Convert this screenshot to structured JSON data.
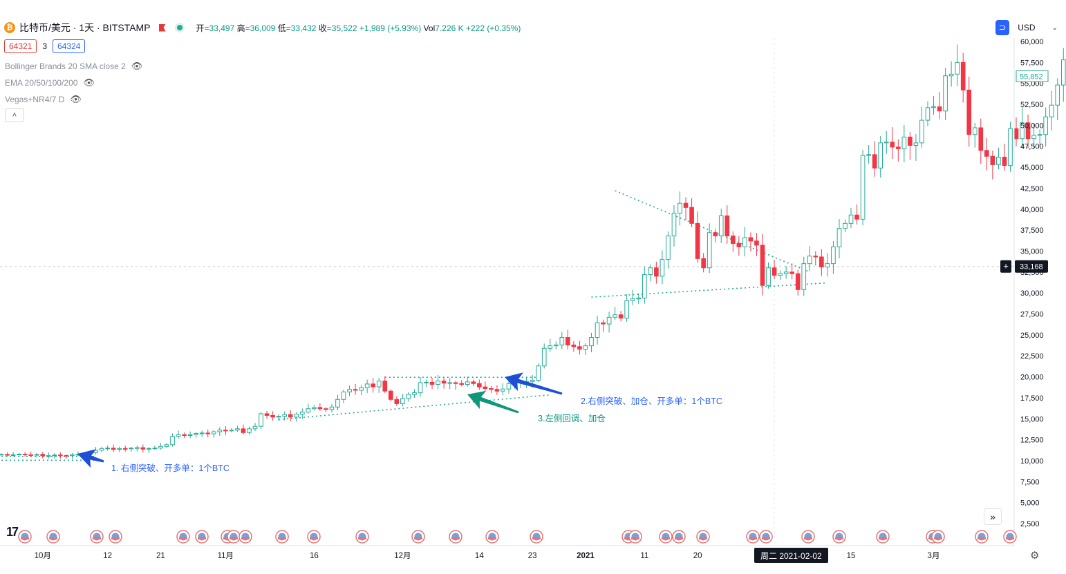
{
  "header": {
    "coin_icon": "bitcoin-icon",
    "coin_glyph": "₿",
    "symbol": "比特币/美元 · 1天 · BITSTAMP",
    "open_label": "开",
    "open": "=33,497",
    "high_label": "高",
    "high": "=36,009",
    "low_label": "低",
    "low": "=33,432",
    "close_label": "收",
    "close": "=35,522",
    "change": "+1,989 (+5.93%)",
    "vol_label": "Vol",
    "vol": "7.226 K",
    "vol_change": "+222 (+0.35%)"
  },
  "price_boxes": {
    "bid": "64321",
    "spread": "3",
    "ask": "64324"
  },
  "indicators": [
    "Bollinger Brands 20 SMA close 2",
    "EMA 20/50/100/200",
    "Vegas+NR4/7 D"
  ],
  "collapse_glyph": "˄",
  "currency": {
    "label": "USD",
    "caret": "⌄",
    "icon": "⊃"
  },
  "tv_logo": "17",
  "more_glyph": "»",
  "settings_glyph": "⚙",
  "cursor_date": "周二 2021-02-02",
  "price_labels": {
    "last": "55,852",
    "crosshair": "33,168",
    "crosshair_icon": "+"
  },
  "annotations": [
    {
      "text": "1. 右侧突破、开多单：1个BTC",
      "color": "#2962ff"
    },
    {
      "text": "2.右侧突破、加仓、开多单：1个BTC",
      "color": "#2962ff"
    },
    {
      "text": "3.左侧回调、加仓",
      "color": "#089981"
    }
  ],
  "colors": {
    "up": "#22ab94",
    "down": "#f23645",
    "arrow_blue": "#1c4fd6",
    "arrow_green": "#10967a",
    "trend": "#22ab94"
  },
  "chart_data": {
    "type": "candlestick",
    "symbol": "BTC/USD",
    "interval": "1D",
    "ylim": [
      2500,
      60000
    ],
    "y_ticks": [
      "2,500",
      "5,000",
      "7,500",
      "10,000",
      "12,500",
      "15,000",
      "17,500",
      "20,000",
      "22,500",
      "25,000",
      "27,500",
      "30,000",
      "32,500",
      "35,000",
      "37,500",
      "40,000",
      "42,500",
      "45,000",
      "47,500",
      "50,000",
      "52,500",
      "55,000",
      "57,500",
      "60,000"
    ],
    "x_ticks": [
      "10月",
      "12",
      "21",
      "11月",
      "16",
      "12月",
      "14",
      "23",
      "2021",
      "11",
      "20",
      "15",
      "3月"
    ],
    "start_date": "2020-09-24",
    "end_date": "2021-03-15",
    "close": [
      10750,
      10650,
      10700,
      10780,
      10700,
      10650,
      10750,
      10580,
      10600,
      10680,
      10620,
      10600,
      10700,
      10750,
      10850,
      10950,
      11250,
      11450,
      11500,
      11350,
      11450,
      11420,
      11500,
      11550,
      11380,
      11450,
      11500,
      11700,
      11900,
      12900,
      13100,
      13000,
      13100,
      13250,
      13300,
      13200,
      13450,
      13650,
      13550,
      13650,
      13800,
      13350,
      13800,
      14100,
      15600,
      15400,
      15200,
      15300,
      15500,
      15200,
      15550,
      15800,
      16200,
      16350,
      16200,
      16100,
      16400,
      17300,
      18200,
      18500,
      18400,
      18700,
      19150,
      18800,
      19500,
      18300,
      17300,
      16800,
      17400,
      17900,
      18100,
      19300,
      19350,
      19100,
      19500,
      19250,
      19300,
      19200,
      19100,
      19400,
      19200,
      18800,
      18600,
      18500,
      18300,
      18550,
      19200,
      19300,
      19350,
      19450,
      19600,
      21300,
      23400,
      23700,
      23800,
      24700,
      23800,
      23600,
      23300,
      23700,
      24700,
      26450,
      26300,
      27100,
      27400,
      27000,
      29100,
      29300,
      29400,
      32200,
      33000,
      32000,
      34000,
      36800,
      39500,
      40700,
      40200,
      38300,
      34100,
      33000,
      37200,
      36800,
      39200,
      36800,
      35900,
      35500,
      36600,
      36200,
      35700,
      30900,
      33000,
      32100,
      32300,
      32500,
      32300,
      30400,
      33500,
      34400,
      34300,
      33100,
      33500,
      35500,
      37700,
      38300,
      39300,
      38800,
      46400,
      46500,
      44900,
      47900,
      48000,
      47400,
      47200,
      48600,
      47600,
      47900,
      50600,
      52100,
      52200,
      51700,
      55900,
      56100,
      57500,
      54200,
      48900,
      49700,
      47000,
      46300,
      45300,
      46200,
      45200,
      49600,
      48400,
      50300,
      48400,
      48800,
      48900,
      51000,
      52400,
      54800,
      57800
    ]
  }
}
